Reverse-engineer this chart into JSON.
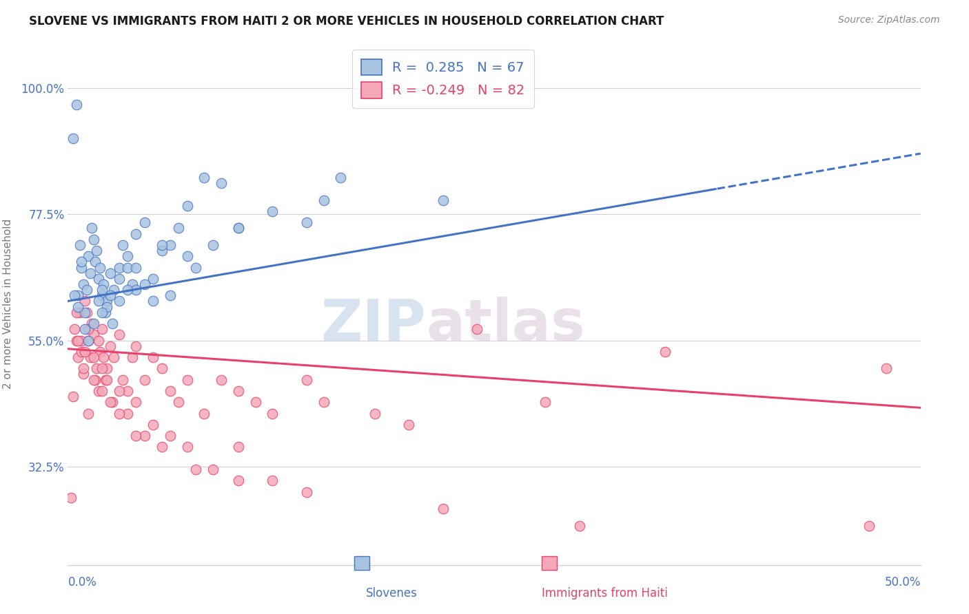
{
  "title": "SLOVENE VS IMMIGRANTS FROM HAITI 2 OR MORE VEHICLES IN HOUSEHOLD CORRELATION CHART",
  "source": "Source: ZipAtlas.com",
  "ylabel": "2 or more Vehicles in Household",
  "y_ticks": [
    32.5,
    55.0,
    77.5,
    100.0
  ],
  "y_tick_labels": [
    "32.5%",
    "55.0%",
    "77.5%",
    "100.0%"
  ],
  "x_min": 0.0,
  "x_max": 50.0,
  "y_min": 15.0,
  "y_max": 108.0,
  "r_slovene": 0.285,
  "n_slovene": 67,
  "r_haiti": -0.249,
  "n_haiti": 82,
  "color_slovene": "#a8c4e0",
  "color_haiti": "#f4a8b8",
  "line_color_slovene": "#4472c4",
  "line_color_haiti": "#e8406a",
  "legend_label_1": "Slovenes",
  "legend_label_2": "Immigrants from Haiti",
  "watermark_zip": "ZIP",
  "watermark_atlas": "atlas",
  "slovene_x": [
    0.3,
    0.5,
    0.6,
    0.7,
    0.8,
    0.9,
    1.0,
    1.1,
    1.2,
    1.3,
    1.4,
    1.5,
    1.6,
    1.7,
    1.8,
    1.9,
    2.0,
    2.1,
    2.2,
    2.3,
    2.5,
    2.7,
    3.0,
    3.2,
    3.5,
    3.8,
    4.0,
    4.5,
    5.0,
    5.5,
    6.0,
    6.5,
    7.0,
    8.0,
    9.0,
    10.0,
    12.0,
    14.0,
    16.0,
    22.0,
    0.4,
    0.6,
    0.8,
    1.0,
    1.2,
    1.5,
    1.8,
    2.0,
    2.3,
    2.6,
    3.0,
    3.5,
    4.0,
    4.5,
    5.0,
    6.0,
    7.0,
    8.5,
    2.0,
    2.5,
    3.0,
    3.5,
    4.0,
    5.5,
    7.5,
    10.0,
    15.0
  ],
  "slovene_y": [
    91.0,
    97.0,
    63.0,
    72.0,
    68.0,
    65.0,
    60.0,
    64.0,
    70.0,
    67.0,
    75.0,
    73.0,
    69.0,
    71.0,
    66.0,
    68.0,
    63.0,
    65.0,
    60.0,
    62.0,
    67.0,
    64.0,
    68.0,
    72.0,
    70.0,
    65.0,
    74.0,
    76.0,
    66.0,
    71.0,
    72.0,
    75.0,
    79.0,
    84.0,
    83.0,
    75.0,
    78.0,
    76.0,
    84.0,
    80.0,
    63.0,
    61.0,
    69.0,
    57.0,
    55.0,
    58.0,
    62.0,
    64.0,
    61.0,
    58.0,
    66.0,
    68.0,
    64.0,
    65.0,
    62.0,
    63.0,
    70.0,
    72.0,
    60.0,
    63.0,
    62.0,
    64.0,
    68.0,
    72.0,
    68.0,
    75.0,
    80.0
  ],
  "haiti_x": [
    0.2,
    0.4,
    0.5,
    0.6,
    0.7,
    0.8,
    0.9,
    1.0,
    1.1,
    1.2,
    1.3,
    1.4,
    1.5,
    1.6,
    1.7,
    1.8,
    1.9,
    2.0,
    2.1,
    2.2,
    2.3,
    2.5,
    2.7,
    3.0,
    3.2,
    3.5,
    3.8,
    4.0,
    4.5,
    5.0,
    5.5,
    6.0,
    6.5,
    7.0,
    8.0,
    9.0,
    10.0,
    11.0,
    12.0,
    14.0,
    15.0,
    18.0,
    20.0,
    24.0,
    28.0,
    35.0,
    0.5,
    0.8,
    1.0,
    1.2,
    1.5,
    1.8,
    2.0,
    2.3,
    2.6,
    3.0,
    3.5,
    4.0,
    4.5,
    5.0,
    6.0,
    7.0,
    8.5,
    10.0,
    12.0,
    0.3,
    0.6,
    0.9,
    1.2,
    1.5,
    2.0,
    2.5,
    3.0,
    4.0,
    5.5,
    7.5,
    10.0,
    14.0,
    22.0,
    30.0,
    47.0,
    48.0
  ],
  "haiti_y": [
    27.0,
    57.0,
    55.0,
    52.0,
    60.0,
    53.0,
    49.0,
    62.0,
    60.0,
    55.0,
    52.0,
    58.0,
    56.0,
    48.0,
    50.0,
    55.0,
    53.0,
    57.0,
    52.0,
    48.0,
    50.0,
    54.0,
    52.0,
    56.0,
    48.0,
    46.0,
    52.0,
    54.0,
    48.0,
    52.0,
    50.0,
    46.0,
    44.0,
    48.0,
    42.0,
    48.0,
    46.0,
    44.0,
    42.0,
    48.0,
    44.0,
    42.0,
    40.0,
    57.0,
    44.0,
    53.0,
    60.0,
    55.0,
    53.0,
    57.0,
    52.0,
    46.0,
    50.0,
    48.0,
    44.0,
    46.0,
    42.0,
    44.0,
    38.0,
    40.0,
    38.0,
    36.0,
    32.0,
    36.0,
    30.0,
    45.0,
    55.0,
    50.0,
    42.0,
    48.0,
    46.0,
    44.0,
    42.0,
    38.0,
    36.0,
    32.0,
    30.0,
    28.0,
    25.0,
    22.0,
    22.0,
    50.0
  ]
}
